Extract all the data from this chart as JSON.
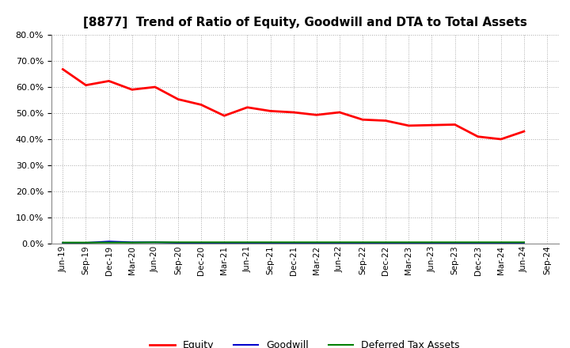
{
  "title": "[8877]  Trend of Ratio of Equity, Goodwill and DTA to Total Assets",
  "x_labels": [
    "Jun-19",
    "Sep-19",
    "Dec-19",
    "Mar-20",
    "Jun-20",
    "Sep-20",
    "Dec-20",
    "Mar-21",
    "Jun-21",
    "Sep-21",
    "Dec-21",
    "Mar-22",
    "Jun-22",
    "Sep-22",
    "Dec-22",
    "Mar-23",
    "Jun-23",
    "Sep-23",
    "Dec-23",
    "Mar-24",
    "Jun-24",
    "Sep-24"
  ],
  "equity": [
    0.668,
    0.607,
    0.623,
    0.59,
    0.6,
    0.553,
    0.532,
    0.49,
    0.522,
    0.508,
    0.503,
    0.493,
    0.503,
    0.475,
    0.471,
    0.452,
    0.454,
    0.456,
    0.41,
    0.4,
    0.43,
    null
  ],
  "goodwill": [
    0.003,
    0.003,
    0.008,
    0.005,
    0.005,
    0.003,
    0.003,
    0.003,
    0.003,
    0.003,
    0.002,
    0.002,
    0.002,
    0.002,
    0.002,
    0.002,
    0.002,
    0.002,
    0.002,
    0.002,
    0.002,
    null
  ],
  "dta": [
    0.004,
    0.004,
    0.004,
    0.004,
    0.005,
    0.005,
    0.005,
    0.005,
    0.005,
    0.005,
    0.005,
    0.005,
    0.005,
    0.005,
    0.005,
    0.005,
    0.005,
    0.005,
    0.005,
    0.005,
    0.005,
    null
  ],
  "equity_color": "#FF0000",
  "goodwill_color": "#0000CD",
  "dta_color": "#008000",
  "ylim": [
    0.0,
    0.8
  ],
  "yticks": [
    0.0,
    0.1,
    0.2,
    0.3,
    0.4,
    0.5,
    0.6,
    0.7,
    0.8
  ],
  "bg_color": "#FFFFFF",
  "plot_bg_color": "#FFFFFF",
  "grid_color": "#AAAAAA",
  "title_fontsize": 11,
  "legend_labels": [
    "Equity",
    "Goodwill",
    "Deferred Tax Assets"
  ]
}
